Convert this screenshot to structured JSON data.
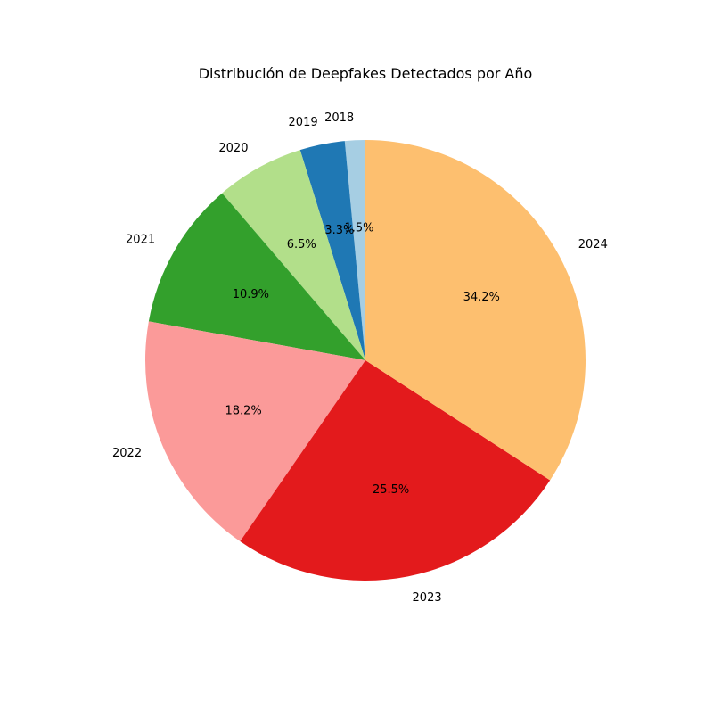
{
  "chart_data": {
    "type": "pie",
    "title": "Distribución de Deepfakes Detectados por Año",
    "categories": [
      "2018",
      "2019",
      "2020",
      "2021",
      "2022",
      "2023",
      "2024"
    ],
    "values": [
      1.5,
      3.3,
      6.5,
      10.9,
      18.2,
      25.5,
      34.2
    ],
    "value_labels": [
      "1.5%",
      "3.3%",
      "6.5%",
      "10.9%",
      "18.2%",
      "25.5%",
      "34.2%"
    ],
    "colors": [
      "#a6cee3",
      "#1f78b4",
      "#b2df8a",
      "#33a02c",
      "#fb9a99",
      "#e31a1c",
      "#fdbf6f"
    ],
    "start_angle_deg": 90,
    "direction": "counterclockwise",
    "legend": "none"
  }
}
